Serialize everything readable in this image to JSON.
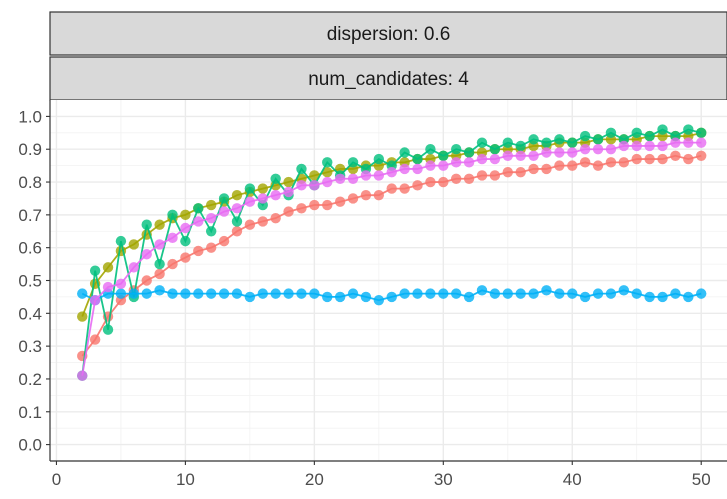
{
  "chart_data": {
    "type": "line",
    "facet_strips": [
      "dispersion: 0.6",
      "num_candidates: 4"
    ],
    "xlim": [
      -0.5,
      52
    ],
    "ylim": [
      -0.05,
      1.05
    ],
    "x_ticks": [
      0,
      10,
      20,
      30,
      40,
      50
    ],
    "y_ticks": [
      0.0,
      0.1,
      0.2,
      0.3,
      0.4,
      0.5,
      0.6,
      0.7,
      0.8,
      0.9,
      1.0
    ],
    "grid": true,
    "colors": {
      "red": "#f8766d",
      "olive": "#a3a500",
      "green": "#00bf7d",
      "blue": "#00b0f6",
      "pink": "#e76bf3"
    },
    "series": [
      {
        "color": "#f8766d",
        "x": [
          2,
          3,
          4,
          5,
          6,
          7,
          8,
          9,
          10,
          11,
          12,
          13,
          14,
          15,
          16,
          17,
          18,
          19,
          20,
          21,
          22,
          23,
          24,
          25,
          26,
          27,
          28,
          29,
          30,
          31,
          32,
          33,
          34,
          35,
          36,
          37,
          38,
          39,
          40,
          41,
          42,
          43,
          44,
          45,
          46,
          47,
          48,
          49,
          50
        ],
        "y": [
          0.27,
          0.32,
          0.39,
          0.44,
          0.47,
          0.5,
          0.52,
          0.55,
          0.57,
          0.59,
          0.6,
          0.62,
          0.65,
          0.67,
          0.68,
          0.69,
          0.71,
          0.72,
          0.73,
          0.73,
          0.74,
          0.75,
          0.76,
          0.76,
          0.78,
          0.78,
          0.79,
          0.8,
          0.8,
          0.81,
          0.81,
          0.82,
          0.82,
          0.83,
          0.83,
          0.84,
          0.84,
          0.85,
          0.85,
          0.86,
          0.85,
          0.86,
          0.86,
          0.87,
          0.87,
          0.87,
          0.88,
          0.87,
          0.88
        ]
      },
      {
        "color": "#a3a500",
        "x": [
          2,
          3,
          4,
          5,
          6,
          7,
          8,
          9,
          10,
          11,
          12,
          13,
          14,
          15,
          16,
          17,
          18,
          19,
          20,
          21,
          22,
          23,
          24,
          25,
          26,
          27,
          28,
          29,
          30,
          31,
          32,
          33,
          34,
          35,
          36,
          37,
          38,
          39,
          40,
          41,
          42,
          43,
          44,
          45,
          46,
          47,
          48,
          49,
          50
        ],
        "y": [
          0.39,
          0.49,
          0.54,
          0.59,
          0.61,
          0.64,
          0.67,
          0.69,
          0.7,
          0.72,
          0.73,
          0.74,
          0.76,
          0.77,
          0.78,
          0.79,
          0.8,
          0.81,
          0.82,
          0.83,
          0.84,
          0.84,
          0.85,
          0.85,
          0.86,
          0.86,
          0.87,
          0.87,
          0.88,
          0.88,
          0.89,
          0.89,
          0.9,
          0.9,
          0.9,
          0.91,
          0.91,
          0.92,
          0.92,
          0.92,
          0.93,
          0.93,
          0.93,
          0.93,
          0.94,
          0.94,
          0.94,
          0.94,
          0.95
        ]
      },
      {
        "color": "#00bf7d",
        "x": [
          2,
          3,
          4,
          5,
          6,
          7,
          8,
          9,
          10,
          11,
          12,
          13,
          14,
          15,
          16,
          17,
          18,
          19,
          20,
          21,
          22,
          23,
          24,
          25,
          26,
          27,
          28,
          29,
          30,
          31,
          32,
          33,
          34,
          35,
          36,
          37,
          38,
          39,
          40,
          41,
          42,
          43,
          44,
          45,
          46,
          47,
          48,
          49,
          50
        ],
        "y": [
          0.21,
          0.53,
          0.35,
          0.62,
          0.45,
          0.67,
          0.55,
          0.7,
          0.62,
          0.72,
          0.65,
          0.75,
          0.68,
          0.78,
          0.73,
          0.81,
          0.76,
          0.84,
          0.79,
          0.86,
          0.82,
          0.86,
          0.84,
          0.87,
          0.85,
          0.89,
          0.87,
          0.9,
          0.88,
          0.9,
          0.89,
          0.92,
          0.9,
          0.92,
          0.91,
          0.93,
          0.92,
          0.93,
          0.92,
          0.94,
          0.93,
          0.95,
          0.93,
          0.95,
          0.94,
          0.96,
          0.94,
          0.96,
          0.95
        ]
      },
      {
        "color": "#00b0f6",
        "x": [
          2,
          3,
          4,
          5,
          6,
          7,
          8,
          9,
          10,
          11,
          12,
          13,
          14,
          15,
          16,
          17,
          18,
          19,
          20,
          21,
          22,
          23,
          24,
          25,
          26,
          27,
          28,
          29,
          30,
          31,
          32,
          33,
          34,
          35,
          36,
          37,
          38,
          39,
          40,
          41,
          42,
          43,
          44,
          45,
          46,
          47,
          48,
          49,
          50
        ],
        "y": [
          0.46,
          0.44,
          0.46,
          0.46,
          0.46,
          0.46,
          0.47,
          0.46,
          0.46,
          0.46,
          0.46,
          0.46,
          0.46,
          0.45,
          0.46,
          0.46,
          0.46,
          0.46,
          0.46,
          0.45,
          0.45,
          0.46,
          0.45,
          0.44,
          0.45,
          0.46,
          0.46,
          0.46,
          0.46,
          0.46,
          0.45,
          0.47,
          0.46,
          0.46,
          0.46,
          0.46,
          0.47,
          0.46,
          0.46,
          0.45,
          0.46,
          0.46,
          0.47,
          0.46,
          0.45,
          0.45,
          0.46,
          0.45,
          0.46
        ]
      },
      {
        "color": "#e76bf3",
        "x": [
          2,
          3,
          4,
          5,
          6,
          7,
          8,
          9,
          10,
          11,
          12,
          13,
          14,
          15,
          16,
          17,
          18,
          19,
          20,
          21,
          22,
          23,
          24,
          25,
          26,
          27,
          28,
          29,
          30,
          31,
          32,
          33,
          34,
          35,
          36,
          37,
          38,
          39,
          40,
          41,
          42,
          43,
          44,
          45,
          46,
          47,
          48,
          49,
          50
        ],
        "y": [
          0.21,
          0.44,
          0.48,
          0.49,
          0.54,
          0.58,
          0.61,
          0.63,
          0.66,
          0.68,
          0.69,
          0.71,
          0.72,
          0.74,
          0.75,
          0.76,
          0.77,
          0.79,
          0.79,
          0.8,
          0.81,
          0.81,
          0.82,
          0.82,
          0.83,
          0.84,
          0.84,
          0.85,
          0.85,
          0.86,
          0.86,
          0.87,
          0.87,
          0.88,
          0.88,
          0.88,
          0.89,
          0.89,
          0.89,
          0.9,
          0.9,
          0.9,
          0.91,
          0.91,
          0.91,
          0.91,
          0.92,
          0.92,
          0.92
        ]
      }
    ]
  }
}
